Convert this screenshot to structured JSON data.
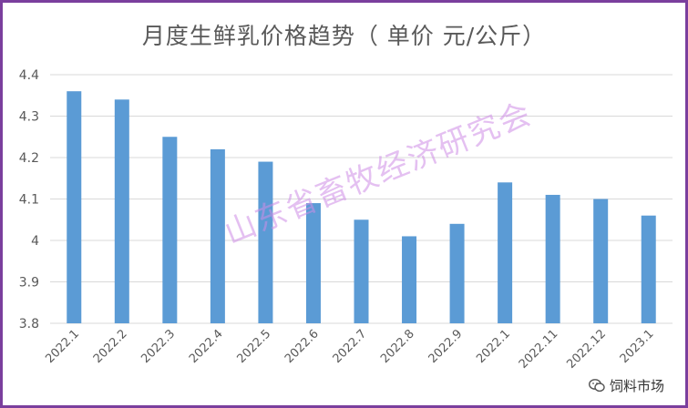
{
  "chart_data": {
    "type": "bar",
    "title": "月度生鲜乳价格趋势（ 单价 元/公斤）",
    "categories": [
      "2022.1",
      "2022.2",
      "2022.3",
      "2022.4",
      "2022.5",
      "2022.6",
      "2022.7",
      "2022.8",
      "2022.9",
      "2022.1",
      "2022.11",
      "2022.12",
      "2023.1"
    ],
    "values": [
      4.36,
      4.34,
      4.25,
      4.22,
      4.19,
      4.09,
      4.05,
      4.01,
      4.04,
      4.14,
      4.11,
      4.1,
      4.06
    ],
    "yticks": [
      "4.4",
      "4.3",
      "4.2",
      "4.1",
      "4",
      "3.9",
      "3.8"
    ],
    "ylim": [
      3.8,
      4.4
    ],
    "grid": true,
    "bar_color": "#5b9bd5",
    "xlabel": "",
    "ylabel": ""
  },
  "watermark": "山东省畜牧经济研究会",
  "brand": {
    "label": "饲料市场",
    "icon": "wechat-icon"
  },
  "colors": {
    "border": "#7a3f9d",
    "grid": "#d9d9d9",
    "text": "#595959"
  }
}
